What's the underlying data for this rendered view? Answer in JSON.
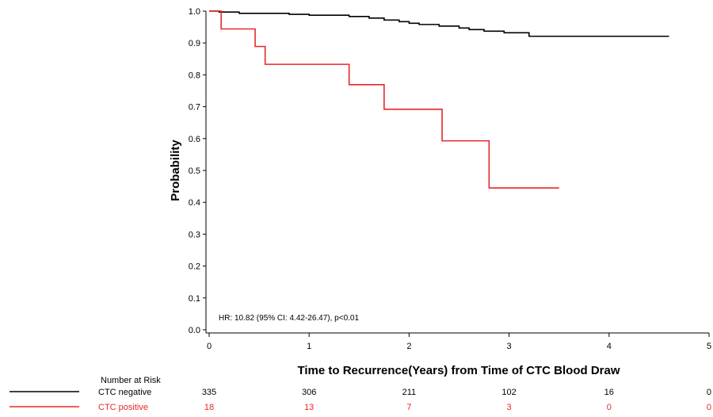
{
  "chart_data": {
    "type": "line",
    "subtype": "kaplan-meier-step",
    "xlabel": "Time to Recurrence(Years) from Time of CTC Blood Draw",
    "ylabel": "Probability",
    "xlim": [
      0,
      5
    ],
    "ylim": [
      0,
      1
    ],
    "x_ticks": [
      "0",
      "1",
      "2",
      "3",
      "4",
      "5"
    ],
    "y_ticks": [
      "0.0",
      "0.1",
      "0.2",
      "0.3",
      "0.4",
      "0.5",
      "0.6",
      "0.7",
      "0.8",
      "0.9",
      "1.0"
    ],
    "annotation": "HR: 10.82 (95% CI: 4.42-26.47), p<0.01",
    "grid": false,
    "series": [
      {
        "name": "CTC negative",
        "color": "#000000",
        "x": [
          0,
          0.1,
          0.3,
          0.8,
          1.0,
          1.4,
          1.6,
          1.75,
          1.9,
          2.0,
          2.1,
          2.3,
          2.5,
          2.6,
          2.75,
          2.95,
          3.2,
          4.6
        ],
        "y": [
          1.0,
          0.997,
          0.993,
          0.99,
          0.987,
          0.983,
          0.978,
          0.972,
          0.967,
          0.962,
          0.958,
          0.953,
          0.947,
          0.942,
          0.937,
          0.932,
          0.921,
          0.921
        ]
      },
      {
        "name": "CTC positive",
        "color": "#e8262a",
        "x": [
          0,
          0.12,
          0.46,
          0.56,
          1.4,
          1.75,
          2.33,
          2.8,
          3.5
        ],
        "y": [
          1.0,
          0.944,
          0.889,
          0.833,
          0.769,
          0.692,
          0.593,
          0.445,
          0.445
        ]
      }
    ],
    "risk_table": {
      "title": "Number at Risk",
      "rows": [
        {
          "name": "CTC negative",
          "color": "#000000",
          "values": [
            "335",
            "306",
            "211",
            "102",
            "16",
            "0"
          ]
        },
        {
          "name": "CTC positive",
          "color": "#e8262a",
          "values": [
            "18",
            "13",
            "7",
            "3",
            "0",
            "0"
          ]
        }
      ]
    }
  }
}
